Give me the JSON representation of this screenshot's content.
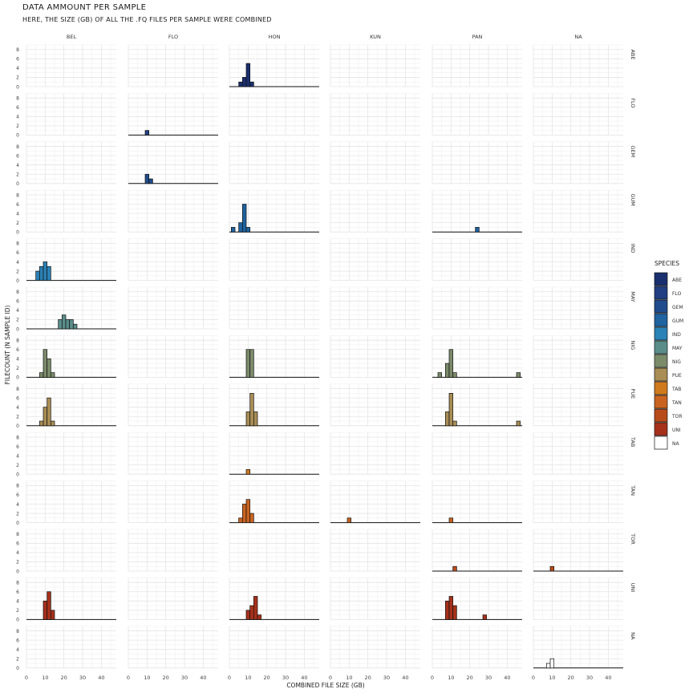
{
  "title": "DATA AMMOUNT PER SAMPLE",
  "subtitle": "HERE, THE SIZE (GB) OF ALL THE .FQ FILES PER SAMPLE WERE COMBINED",
  "chart_data": {
    "type": "bar",
    "subtype": "faceted-histogram",
    "title": "DATA AMMOUNT PER SAMPLE",
    "subtitle": "HERE, THE SIZE (GB) OF ALL THE .FQ FILES PER SAMPLE WERE COMBINED",
    "xlabel": "COMBINED FILE SIZE (GB)",
    "ylabel": "FILECOUNT (N SAMPLE ID)",
    "xlim": [
      0,
      48
    ],
    "ylim": [
      0,
      9
    ],
    "x_ticks": [
      0,
      10,
      20,
      30,
      40
    ],
    "y_ticks": [
      0,
      2,
      4,
      6,
      8
    ],
    "bin_width": 2,
    "grid": true,
    "legend_position": "right",
    "legend_title": "SPECIES",
    "facet_cols": [
      "BEL",
      "FLO",
      "HON",
      "KUN",
      "PAN",
      "NA"
    ],
    "facet_rows": [
      "ABE",
      "FLO",
      "GEM",
      "GUM",
      "IND",
      "MAY",
      "NIG",
      "PUE",
      "TAB",
      "TAN",
      "TOR",
      "UNI",
      "NA"
    ],
    "colors": {
      "ABE": "#1a2f6e",
      "FLO": "#213f82",
      "GEM": "#1f4c8c",
      "GUM": "#1f63a0",
      "IND": "#2b82b6",
      "MAY": "#5a8d8a",
      "NIG": "#7b8b6a",
      "PUE": "#a88d55",
      "TAB": "#d07a1e",
      "TAN": "#c96420",
      "TOR": "#b84b1a",
      "UNI": "#a6311b",
      "NA": "#ffffff"
    },
    "panels": [
      {
        "row": "ABE",
        "col": "HON",
        "bins": [
          [
            6,
            1
          ],
          [
            8,
            2
          ],
          [
            10,
            5
          ],
          [
            12,
            1
          ]
        ]
      },
      {
        "row": "FLO",
        "col": "FLO",
        "bins": [
          [
            10,
            1
          ]
        ]
      },
      {
        "row": "GEM",
        "col": "FLO",
        "bins": [
          [
            10,
            2
          ],
          [
            12,
            1
          ]
        ]
      },
      {
        "row": "GUM",
        "col": "HON",
        "bins": [
          [
            2,
            1
          ],
          [
            6,
            2
          ],
          [
            8,
            6
          ],
          [
            10,
            1
          ]
        ]
      },
      {
        "row": "GUM",
        "col": "PAN",
        "bins": [
          [
            24,
            1
          ]
        ]
      },
      {
        "row": "IND",
        "col": "BEL",
        "bins": [
          [
            6,
            2
          ],
          [
            8,
            3
          ],
          [
            10,
            4
          ],
          [
            12,
            3
          ]
        ]
      },
      {
        "row": "MAY",
        "col": "BEL",
        "bins": [
          [
            18,
            2
          ],
          [
            20,
            3
          ],
          [
            22,
            2
          ],
          [
            24,
            2
          ],
          [
            26,
            1
          ]
        ]
      },
      {
        "row": "NIG",
        "col": "BEL",
        "bins": [
          [
            8,
            1
          ],
          [
            10,
            6
          ],
          [
            12,
            4
          ],
          [
            14,
            1
          ]
        ]
      },
      {
        "row": "NIG",
        "col": "HON",
        "bins": [
          [
            10,
            6
          ],
          [
            12,
            6
          ]
        ]
      },
      {
        "row": "NIG",
        "col": "PAN",
        "bins": [
          [
            4,
            1
          ],
          [
            8,
            3
          ],
          [
            10,
            6
          ],
          [
            12,
            1
          ],
          [
            46,
            1
          ]
        ]
      },
      {
        "row": "PUE",
        "col": "BEL",
        "bins": [
          [
            8,
            1
          ],
          [
            10,
            4
          ],
          [
            12,
            6
          ],
          [
            14,
            1
          ]
        ]
      },
      {
        "row": "PUE",
        "col": "HON",
        "bins": [
          [
            10,
            3
          ],
          [
            12,
            7
          ],
          [
            14,
            3
          ]
        ]
      },
      {
        "row": "PUE",
        "col": "PAN",
        "bins": [
          [
            8,
            3
          ],
          [
            10,
            7
          ],
          [
            12,
            1
          ],
          [
            46,
            1
          ]
        ]
      },
      {
        "row": "TAB",
        "col": "HON",
        "bins": [
          [
            10,
            1
          ]
        ]
      },
      {
        "row": "TAN",
        "col": "HON",
        "bins": [
          [
            6,
            1
          ],
          [
            8,
            4
          ],
          [
            10,
            5
          ],
          [
            12,
            2
          ]
        ]
      },
      {
        "row": "TAN",
        "col": "KUN",
        "bins": [
          [
            10,
            1
          ]
        ]
      },
      {
        "row": "TAN",
        "col": "PAN",
        "bins": [
          [
            10,
            1
          ]
        ]
      },
      {
        "row": "TOR",
        "col": "PAN",
        "bins": [
          [
            12,
            1
          ]
        ]
      },
      {
        "row": "TOR",
        "col": "NA",
        "bins": [
          [
            10,
            1
          ]
        ]
      },
      {
        "row": "UNI",
        "col": "BEL",
        "bins": [
          [
            10,
            4
          ],
          [
            12,
            6
          ],
          [
            14,
            2
          ]
        ]
      },
      {
        "row": "UNI",
        "col": "HON",
        "bins": [
          [
            10,
            2
          ],
          [
            12,
            3
          ],
          [
            14,
            5
          ],
          [
            16,
            1
          ]
        ]
      },
      {
        "row": "UNI",
        "col": "PAN",
        "bins": [
          [
            8,
            4
          ],
          [
            10,
            5
          ],
          [
            12,
            3
          ],
          [
            28,
            1
          ]
        ]
      },
      {
        "row": "NA",
        "col": "NA",
        "bins": [
          [
            8,
            1
          ],
          [
            10,
            2
          ]
        ]
      }
    ]
  }
}
